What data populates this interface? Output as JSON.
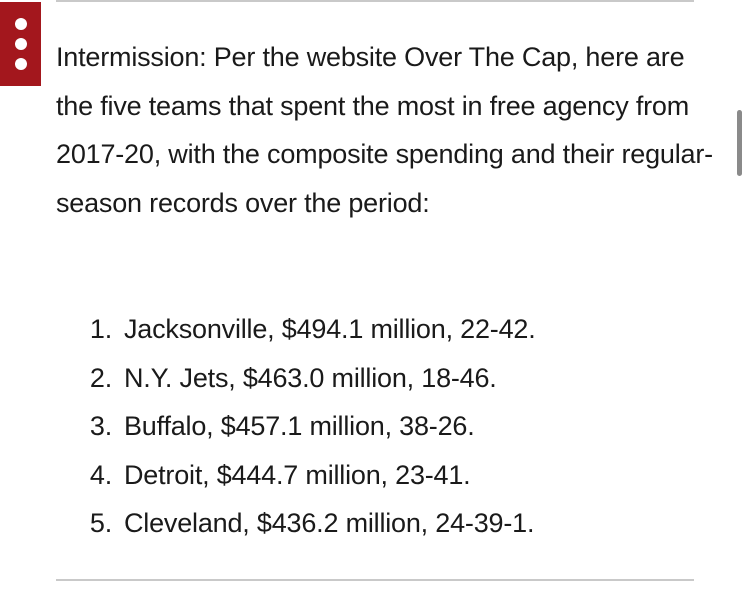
{
  "article": {
    "intro": "Intermission: Per the website Over The Cap, here are the five teams that spent the most in free agency from 2017-20, with the composite spending and their regular-season records over the period:",
    "teams": [
      {
        "rank": "1.",
        "text": "Jacksonville, $494.1 million, 22-42."
      },
      {
        "rank": "2.",
        "text": "N.Y. Jets, $463.0 million, 18-46."
      },
      {
        "rank": "3.",
        "text": "Buffalo, $457.1 million, 38-26."
      },
      {
        "rank": "4.",
        "text": "Detroit, $444.7 million, 23-41."
      },
      {
        "rank": "5.",
        "text": "Cleveland, $436.2 million, 24-39-1."
      }
    ]
  },
  "menu": {
    "icon": "more-vertical-icon",
    "color": "#a3171d"
  }
}
